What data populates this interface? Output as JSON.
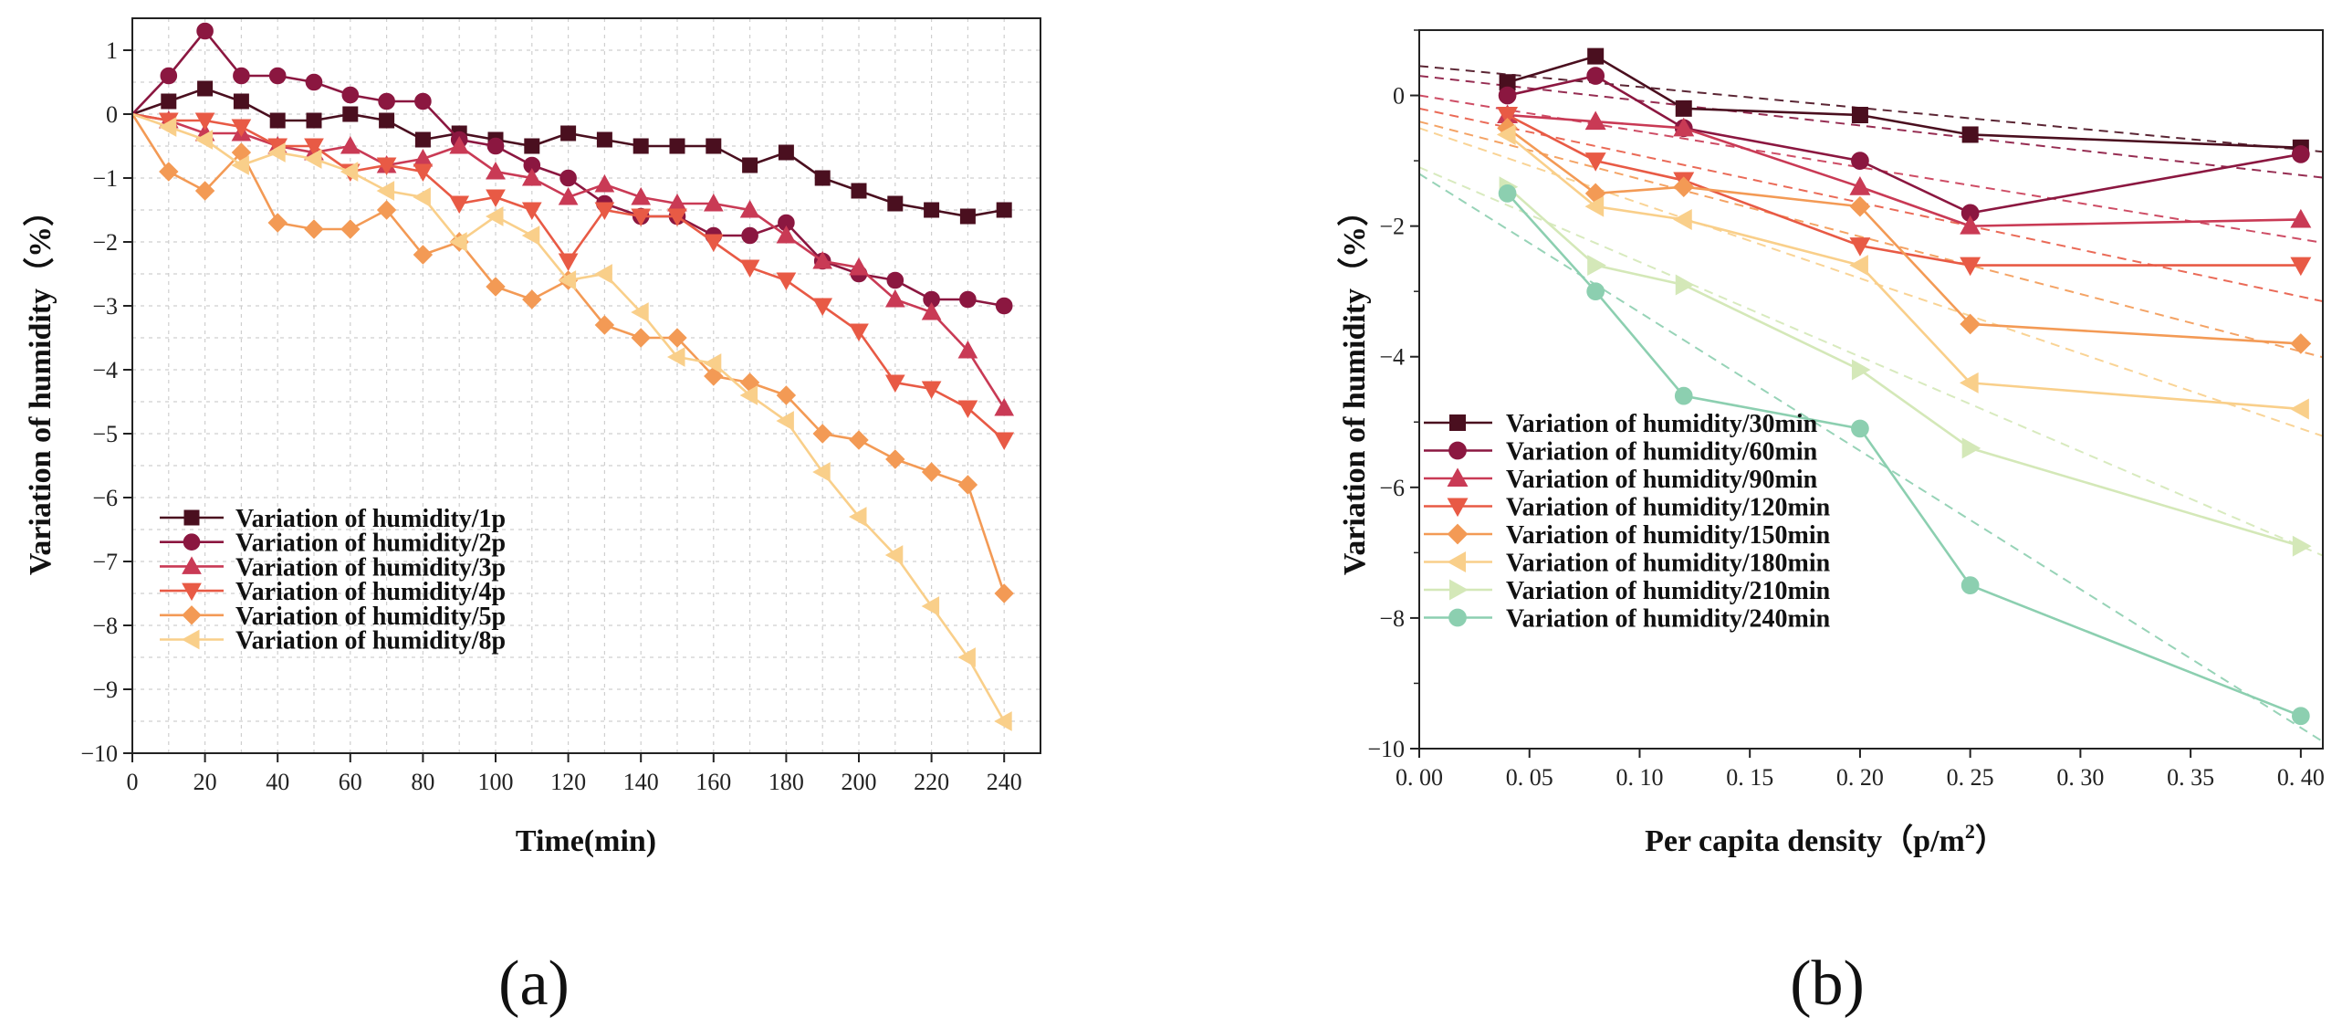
{
  "chart_data": [
    {
      "id": "a",
      "type": "line",
      "panel_label": "(a)",
      "title": "",
      "xlabel": "Time(min)",
      "ylabel": "Variation of humidity（%）",
      "xlim": [
        0,
        250
      ],
      "ylim": [
        -10,
        1.5
      ],
      "xticks": [
        0,
        20,
        40,
        60,
        80,
        100,
        120,
        140,
        160,
        180,
        200,
        220,
        240
      ],
      "yticks": [
        1,
        0,
        -1,
        -2,
        -3,
        -4,
        -5,
        -6,
        -7,
        -8,
        -9,
        -10
      ],
      "grid": true,
      "legend_position": "bottom-left",
      "x": [
        0,
        10,
        20,
        30,
        40,
        50,
        60,
        70,
        80,
        90,
        100,
        110,
        120,
        130,
        140,
        150,
        160,
        170,
        180,
        190,
        200,
        210,
        220,
        230,
        240
      ],
      "series": [
        {
          "name": "Variation of humidity/1p",
          "color": "#4a0f1f",
          "marker": "square",
          "values": [
            0,
            0.2,
            0.4,
            0.2,
            -0.1,
            -0.1,
            0.0,
            -0.1,
            -0.4,
            -0.3,
            -0.4,
            -0.5,
            -0.3,
            -0.4,
            -0.5,
            -0.5,
            -0.5,
            -0.8,
            -0.6,
            -1.0,
            -1.2,
            -1.4,
            -1.5,
            -1.6,
            -1.5
          ]
        },
        {
          "name": "Variation of humidity/2p",
          "color": "#8b1740",
          "marker": "circle",
          "values": [
            0,
            0.6,
            1.3,
            0.6,
            0.6,
            0.5,
            0.3,
            0.2,
            0.2,
            -0.4,
            -0.5,
            -0.8,
            -1.0,
            -1.4,
            -1.6,
            -1.6,
            -1.9,
            -1.9,
            -1.7,
            -2.3,
            -2.5,
            -2.6,
            -2.9,
            -2.9,
            -3.0
          ]
        },
        {
          "name": "Variation of humidity/3p",
          "color": "#c93a55",
          "marker": "triangle-up",
          "values": [
            0,
            -0.1,
            -0.3,
            -0.3,
            -0.5,
            -0.6,
            -0.5,
            -0.8,
            -0.7,
            -0.5,
            -0.9,
            -1.0,
            -1.3,
            -1.1,
            -1.3,
            -1.4,
            -1.4,
            -1.5,
            -1.9,
            -2.3,
            -2.4,
            -2.9,
            -3.1,
            -3.7,
            -4.6
          ]
        },
        {
          "name": "Variation of humidity/4p",
          "color": "#e85a45",
          "marker": "triangle-down",
          "values": [
            0,
            -0.1,
            -0.1,
            -0.2,
            -0.5,
            -0.5,
            -0.9,
            -0.8,
            -0.9,
            -1.4,
            -1.3,
            -1.5,
            -2.3,
            -1.5,
            -1.6,
            -1.6,
            -2.0,
            -2.4,
            -2.6,
            -3.0,
            -3.4,
            -4.2,
            -4.3,
            -4.6,
            -5.1
          ]
        },
        {
          "name": "Variation of humidity/5p",
          "color": "#f39a55",
          "marker": "diamond",
          "values": [
            0,
            -0.9,
            -1.2,
            -0.6,
            -1.7,
            -1.8,
            -1.8,
            -1.5,
            -2.2,
            -2.0,
            -2.7,
            -2.9,
            -2.6,
            -3.3,
            -3.5,
            -3.5,
            -4.1,
            -4.2,
            -4.4,
            -5.0,
            -5.1,
            -5.4,
            -5.6,
            -5.8,
            -7.5
          ]
        },
        {
          "name": "Variation of humidity/8p",
          "color": "#f9cf8a",
          "marker": "triangle-left",
          "values": [
            0,
            -0.2,
            -0.4,
            -0.8,
            -0.6,
            -0.7,
            -0.9,
            -1.2,
            -1.3,
            -2.0,
            -1.6,
            -1.9,
            -2.6,
            -2.5,
            -3.1,
            -3.8,
            -3.9,
            -4.4,
            -4.8,
            -5.6,
            -6.3,
            -6.9,
            -7.7,
            -8.5,
            -9.5
          ]
        }
      ]
    },
    {
      "id": "b",
      "type": "line",
      "panel_label": "(b)",
      "title": "",
      "xlabel": "Per capita density（p/m",
      "xlabel_sup": "2",
      "xlabel_end": "）",
      "ylabel": "Variation of humidity（%）",
      "xlim": [
        0,
        0.41
      ],
      "ylim": [
        -10,
        1
      ],
      "xticks": [
        0.0,
        0.05,
        0.1,
        0.15,
        0.2,
        0.25,
        0.3,
        0.35,
        0.4
      ],
      "xtick_labels": [
        "0. 00",
        "0. 05",
        "0. 10",
        "0. 15",
        "0. 20",
        "0. 25",
        "0. 30",
        "0. 35",
        "0. 40"
      ],
      "yticks": [
        0,
        -2,
        -4,
        -6,
        -8,
        -10
      ],
      "grid": false,
      "legend_position": "bottom-left",
      "x": [
        0.04,
        0.08,
        0.12,
        0.2,
        0.25,
        0.4
      ],
      "series": [
        {
          "name": "Variation of humidity/30min",
          "color": "#4a0f1f",
          "marker": "square",
          "values": [
            0.2,
            0.6,
            -0.2,
            -0.3,
            -0.6,
            -0.8
          ],
          "fit": [
            0.45,
            -3.2
          ]
        },
        {
          "name": "Variation of humidity/60min",
          "color": "#8b1740",
          "marker": "circle",
          "values": [
            0.0,
            0.3,
            -0.5,
            -1.0,
            -1.8,
            -0.9
          ],
          "fit": [
            0.3,
            -3.8
          ]
        },
        {
          "name": "Variation of humidity/90min",
          "color": "#c93a55",
          "marker": "triangle-up",
          "values": [
            -0.3,
            -0.4,
            -0.5,
            -1.4,
            -2.0,
            -1.9
          ],
          "fit": [
            0.0,
            -5.5
          ]
        },
        {
          "name": "Variation of humidity/120min",
          "color": "#e85a45",
          "marker": "triangle-down",
          "values": [
            -0.3,
            -1.0,
            -1.3,
            -2.3,
            -2.6,
            -2.6
          ],
          "fit": [
            -0.2,
            -7.2
          ]
        },
        {
          "name": "Variation of humidity/150min",
          "color": "#f39a55",
          "marker": "diamond",
          "values": [
            -0.5,
            -1.5,
            -1.4,
            -1.7,
            -3.5,
            -3.8
          ],
          "fit": [
            -0.4,
            -8.8
          ]
        },
        {
          "name": "Variation of humidity/180min",
          "color": "#f9cf8a",
          "marker": "triangle-left",
          "values": [
            -0.6,
            -1.7,
            -1.9,
            -2.6,
            -4.4,
            -4.8
          ],
          "fit": [
            -0.5,
            -11.5
          ]
        },
        {
          "name": "Variation of humidity/210min",
          "color": "#d4e8b8",
          "marker": "triangle-right",
          "values": [
            -1.4,
            -2.6,
            -2.9,
            -4.2,
            -5.4,
            -6.9
          ],
          "fit": [
            -1.1,
            -14.5
          ]
        },
        {
          "name": "Variation of humidity/240min",
          "color": "#8ccfb0",
          "marker": "circle",
          "values": [
            -1.5,
            -3.0,
            -4.6,
            -5.1,
            -7.5,
            -9.5
          ],
          "fit": [
            -1.2,
            -21.2
          ]
        }
      ]
    }
  ]
}
